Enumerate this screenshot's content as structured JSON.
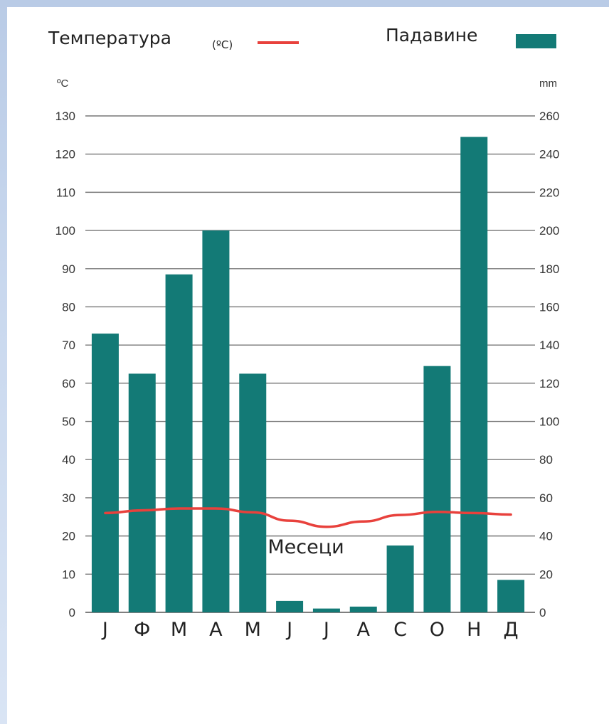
{
  "chart_data": {
    "type": "bar",
    "legend": {
      "temperature_label": "Температура",
      "temperature_unit": "(ºC)",
      "precipitation_label": "Падавине"
    },
    "left_axis": {
      "unit": "ºC",
      "ylim": [
        0,
        130
      ],
      "ticks": [
        "0",
        "10",
        "20",
        "30",
        "40",
        "50",
        "60",
        "70",
        "80",
        "90",
        "100",
        "110",
        "120",
        "130"
      ]
    },
    "right_axis": {
      "unit": "mm",
      "ylim": [
        0,
        260
      ],
      "ticks": [
        "0",
        "20",
        "40",
        "60",
        "80",
        "100",
        "120",
        "140",
        "160",
        "180",
        "200",
        "220",
        "240",
        "260"
      ]
    },
    "xlabel": "Месеци",
    "categories": [
      "Ј",
      "Ф",
      "М",
      "А",
      "М",
      "Ј",
      "Ј",
      "А",
      "С",
      "О",
      "Н",
      "Д"
    ],
    "series": [
      {
        "name": "Падавине",
        "type": "bar",
        "axis": "right",
        "color": "#137a76",
        "values": [
          146,
          125,
          177,
          200,
          125,
          6,
          2,
          3,
          35,
          129,
          249,
          17
        ]
      },
      {
        "name": "Температура",
        "type": "line",
        "axis": "left",
        "color": "#e8413c",
        "values": [
          26,
          26.7,
          27.2,
          27.2,
          26.2,
          24,
          22.4,
          23.8,
          25.5,
          26.3,
          26,
          25.6
        ]
      }
    ],
    "grid": true
  }
}
